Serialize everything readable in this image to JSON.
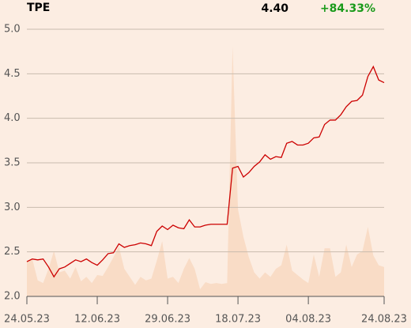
{
  "header": {
    "ticker": "TPE",
    "last": "4.40",
    "change": "+84.33%"
  },
  "chart_data": {
    "type": "line",
    "categories": [
      "24.05.23",
      null,
      null,
      null,
      null,
      null,
      null,
      null,
      null,
      null,
      null,
      null,
      null,
      "12.06.23",
      null,
      null,
      null,
      null,
      null,
      null,
      null,
      null,
      null,
      null,
      null,
      null,
      "29.06.23",
      null,
      null,
      null,
      null,
      null,
      null,
      null,
      null,
      null,
      null,
      null,
      null,
      "18.07.23",
      null,
      null,
      null,
      null,
      null,
      null,
      null,
      null,
      null,
      null,
      null,
      null,
      "04.08.23",
      null,
      null,
      null,
      null,
      null,
      null,
      null,
      null,
      null,
      null,
      null,
      null,
      null,
      "24.08.23"
    ],
    "series": [
      {
        "kind": "area",
        "color": "#f9dcc6",
        "values": [
          2.4,
          2.42,
          2.18,
          2.15,
          2.31,
          2.51,
          2.27,
          2.29,
          2.2,
          2.33,
          2.17,
          2.22,
          2.15,
          2.24,
          2.23,
          2.33,
          2.44,
          2.56,
          2.31,
          2.22,
          2.13,
          2.22,
          2.18,
          2.2,
          2.4,
          2.62,
          2.2,
          2.22,
          2.15,
          2.31,
          2.43,
          2.31,
          2.08,
          2.16,
          2.14,
          2.15,
          2.14,
          2.15,
          4.81,
          2.98,
          2.67,
          2.44,
          2.27,
          2.2,
          2.27,
          2.22,
          2.31,
          2.35,
          2.58,
          2.29,
          2.24,
          2.19,
          2.15,
          2.47,
          2.22,
          2.54,
          2.54,
          2.22,
          2.27,
          2.58,
          2.33,
          2.47,
          2.51,
          2.78,
          2.46,
          2.35,
          2.33
        ]
      },
      {
        "kind": "line",
        "color": "#cc0000",
        "values": [
          2.39,
          2.42,
          2.41,
          2.42,
          2.33,
          2.22,
          2.31,
          2.33,
          2.37,
          2.41,
          2.39,
          2.42,
          2.38,
          2.35,
          2.41,
          2.48,
          2.49,
          2.59,
          2.55,
          2.57,
          2.58,
          2.6,
          2.59,
          2.57,
          2.73,
          2.79,
          2.75,
          2.8,
          2.77,
          2.76,
          2.86,
          2.78,
          2.78,
          2.8,
          2.81,
          2.81,
          2.81,
          2.81,
          3.44,
          3.46,
          3.34,
          3.39,
          3.46,
          3.51,
          3.59,
          3.54,
          3.57,
          3.56,
          3.72,
          3.74,
          3.7,
          3.7,
          3.72,
          3.78,
          3.79,
          3.93,
          3.98,
          3.98,
          4.04,
          4.13,
          4.19,
          4.2,
          4.26,
          4.47,
          4.58,
          4.43,
          4.4
        ]
      }
    ],
    "ylim": [
      2.0,
      5.0
    ],
    "yticks": [
      {
        "value": 2.0,
        "label": "2.0"
      },
      {
        "value": 2.5,
        "label": "2.5"
      },
      {
        "value": 3.0,
        "label": "3.0"
      },
      {
        "value": 3.5,
        "label": "3.5"
      },
      {
        "value": 4.0,
        "label": "4.0"
      },
      {
        "value": 4.5,
        "label": "4.5"
      },
      {
        "value": 5.0,
        "label": "5.0"
      }
    ],
    "grid": true
  }
}
